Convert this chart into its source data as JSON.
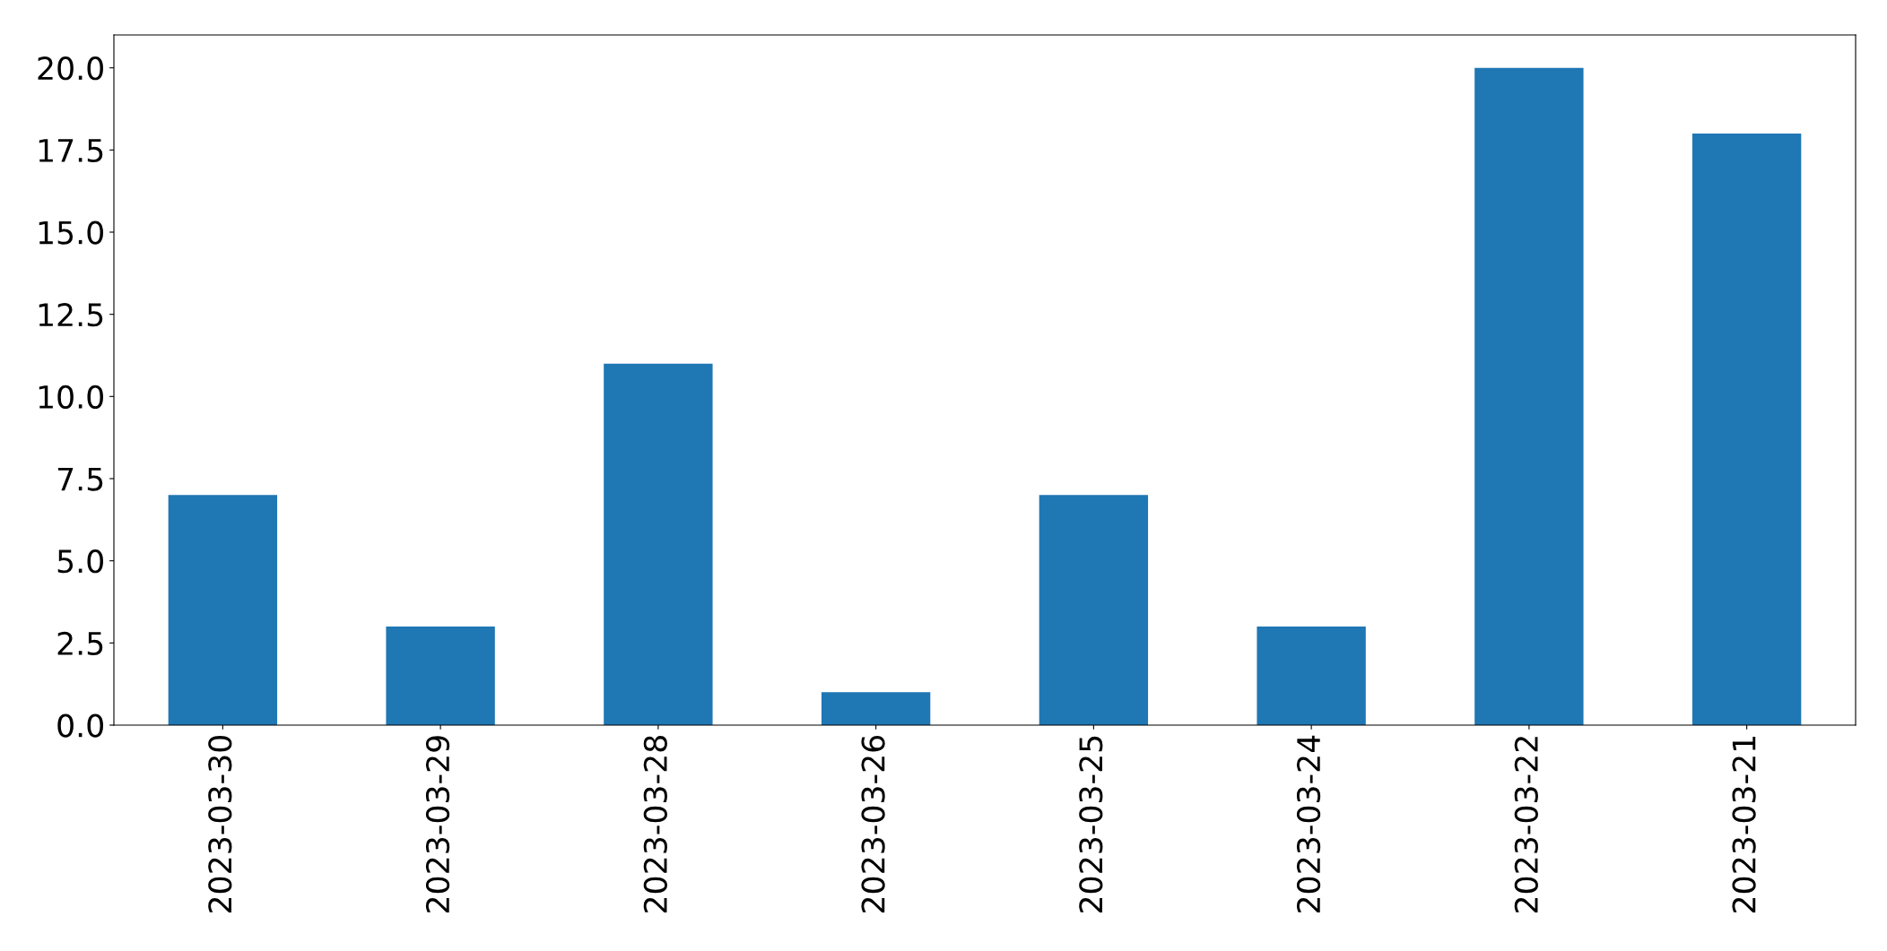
{
  "chart_data": {
    "type": "bar",
    "categories": [
      "2023-03-30",
      "2023-03-29",
      "2023-03-28",
      "2023-03-26",
      "2023-03-25",
      "2023-03-24",
      "2023-03-22",
      "2023-03-21"
    ],
    "values": [
      7,
      3,
      11,
      1,
      7,
      3,
      20,
      18
    ],
    "color": "#1f77b4",
    "ylim": [
      0,
      21
    ],
    "yticks": [
      {
        "value": 0,
        "label": "0.0"
      },
      {
        "value": 2.5,
        "label": "2.5"
      },
      {
        "value": 5,
        "label": "5.0"
      },
      {
        "value": 7.5,
        "label": "7.5"
      },
      {
        "value": 10,
        "label": "10.0"
      },
      {
        "value": 12.5,
        "label": "12.5"
      },
      {
        "value": 15,
        "label": "15.0"
      },
      {
        "value": 17.5,
        "label": "17.5"
      },
      {
        "value": 20,
        "label": "20.0"
      }
    ]
  }
}
